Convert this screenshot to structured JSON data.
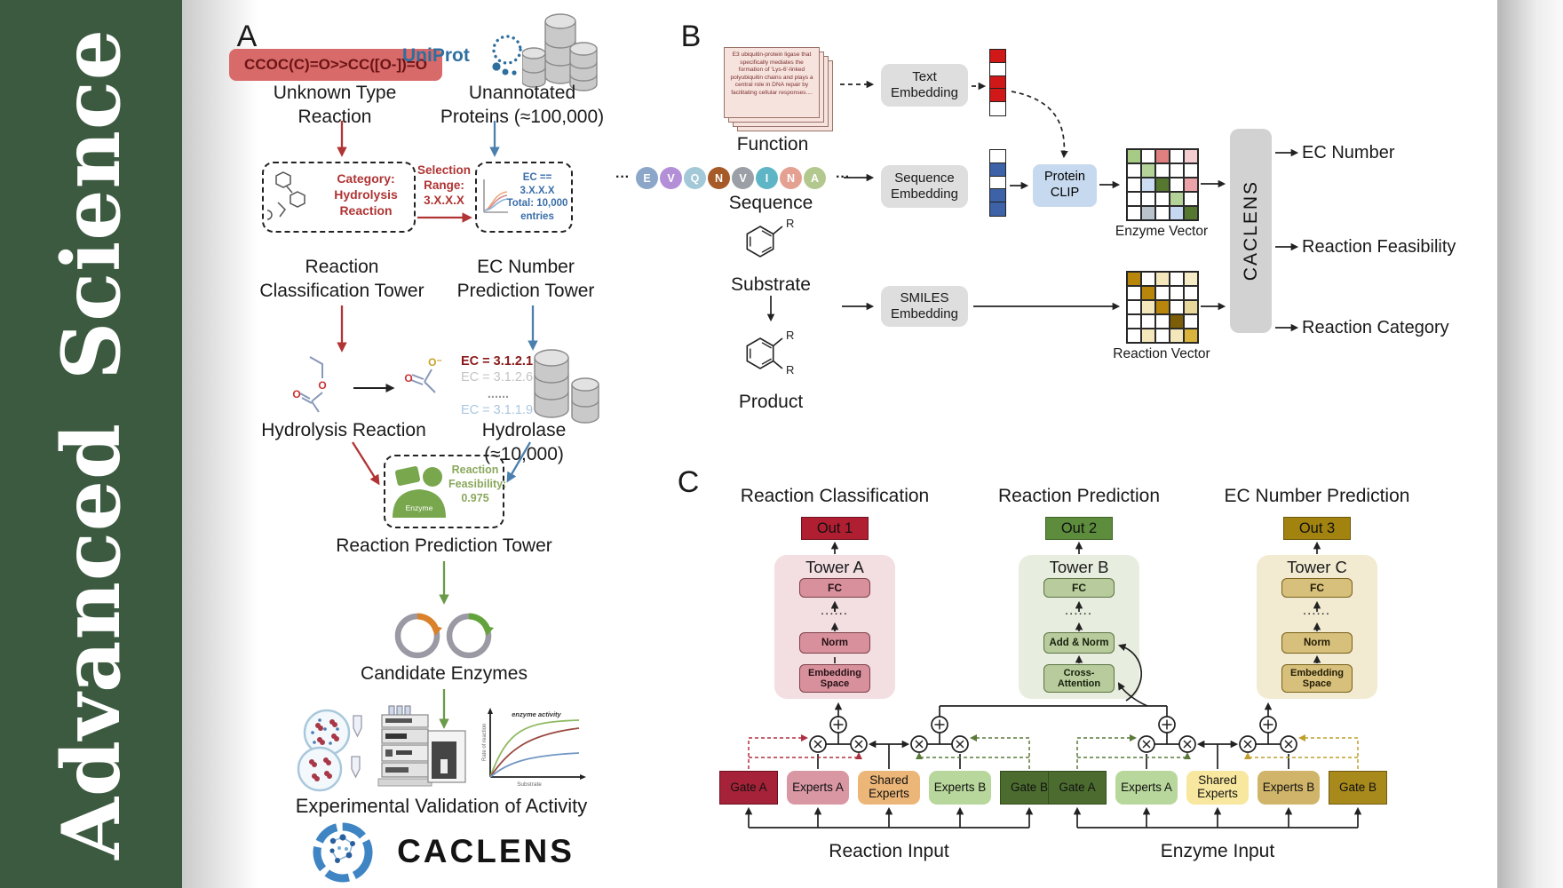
{
  "journal": {
    "title": "Advanced Science"
  },
  "colors": {
    "sidebar_green": "#3c5a40",
    "smiles_red_bg": "#d96a6a",
    "uniprot_blue": "#2e6f9f",
    "arrow_red": "#b03434",
    "arrow_blue": "#4a7fae",
    "arrow_green": "#6a9a4a",
    "out1_red": "#b01e32",
    "out2_green": "#5c8c3c",
    "out3_gold": "#a2830f",
    "tower_a_pink": "#f3dee2",
    "tower_b_green": "#e8eedf",
    "tower_c_tan": "#f2ebd2",
    "gate_a1": "#a52238",
    "experts_a1": "#d897a3",
    "shared1": "#ecb678",
    "experts_b1": "#b8d79c",
    "gate_b1": "#4c6c2f",
    "gate_a2": "#4c6c2f",
    "experts_a2": "#b8d79c",
    "shared2": "#f8e79e",
    "experts_b2": "#cfb469",
    "gate_b2": "#a8891c",
    "protein_clip_blue": "#c7d9ee",
    "embedding_gray": "#dedede",
    "caclens_bar_gray": "#d2d2d2"
  },
  "a": {
    "label": "A",
    "smiles": "CCOC(C)=O>>CC([O-])=O",
    "unknown": "Unknown Type Reaction",
    "uniprot": "UniProt",
    "unannotated": "Unannotated Proteins (≈100,000)",
    "category": [
      "Category:",
      "Hydrolysis",
      "Reaction"
    ],
    "selection": [
      "Selection",
      "Range:",
      "3.X.X.X"
    ],
    "ec_filter": [
      "EC == 3.X.X.X",
      "Total: 10,000",
      "entries"
    ],
    "classification_tower": "Reaction Classification Tower",
    "ec_tower": "EC Number Prediction Tower",
    "hydrolysis": "Hydrolysis Reaction",
    "ec_list": [
      "EC = 3.1.2.1",
      "EC = 3.1.2.6",
      "......",
      "EC = 3.1.1.9"
    ],
    "hydrolase": "Hydrolase (≈10,000)",
    "enzyme": "Enzyme",
    "feasibility": [
      "Reaction",
      "Feasibility:",
      "0.975"
    ],
    "prediction_tower": "Reaction Prediction Tower",
    "candidate": "Candidate Enzymes",
    "validation": "Experimental Validation of Activity",
    "logo_text": "CACLENS",
    "graph": {
      "ylabel": "Rate of reaction",
      "xlabel": "Substrate",
      "annotation": "enzyme activity"
    }
  },
  "b": {
    "label": "B",
    "function_text": "E3 ubiquitin-protein ligase that specifically mediates the formation of 'Lys-6'-linked polyubiquitin chains and plays a central role in DNA repair by facilitating cellular responses....",
    "function_label": "Function",
    "ellipsis": "···",
    "residues": [
      {
        "ch": "E",
        "color": "#8ba6c9"
      },
      {
        "ch": "V",
        "color": "#b28fd6"
      },
      {
        "ch": "Q",
        "color": "#a3c8d8"
      },
      {
        "ch": "N",
        "color": "#a55a28"
      },
      {
        "ch": "V",
        "color": "#9aa0a6"
      },
      {
        "ch": "I",
        "color": "#5eb5c6"
      },
      {
        "ch": "N",
        "color": "#e4a192"
      },
      {
        "ch": "A",
        "color": "#b3c88f"
      }
    ],
    "sequence_label": "Sequence",
    "substrate_label": "Substrate",
    "product_label": "Product",
    "r": "R",
    "text_embedding": "Text Embedding",
    "sequence_embedding": "Sequence Embedding",
    "smiles_embedding": "SMILES Embedding",
    "protein_clip": "Protein CLIP",
    "text_vector": [
      "#d01818",
      "#ffffff",
      "#d01818",
      "#d01818",
      "#ffffff"
    ],
    "seq_vector": [
      "#ffffff",
      "#3d62a8",
      "#ffffff",
      "#3d62a8",
      "#3d62a8"
    ],
    "enzyme_vector_label": "Enzyme Vector",
    "enzyme_vector": [
      [
        "#a6cb85",
        "#ffffff",
        "#e07f7f",
        "#ffffff",
        "#f3cdd0"
      ],
      [
        "#ffffff",
        "#b4d398",
        "#ffffff",
        "#ffffff",
        "#ffffff"
      ],
      [
        "#ffffff",
        "#ccdcf2",
        "#55772f",
        "#ffffff",
        "#eba3a9"
      ],
      [
        "#ffffff",
        "#ffffff",
        "#ffffff",
        "#b4d398",
        "#ffffff"
      ],
      [
        "#ffffff",
        "#b9c3cb",
        "#ffffff",
        "#c5d8ef",
        "#55772f"
      ]
    ],
    "reaction_vector_label": "Reaction Vector",
    "reaction_vector": [
      [
        "#b8860b",
        "#ffffff",
        "#f3e7bb",
        "#ffffff",
        "#f6ecc8"
      ],
      [
        "#ffffff",
        "#b8860b",
        "#ffffff",
        "#ffffff",
        "#ffffff"
      ],
      [
        "#ffffff",
        "#f3e7bb",
        "#b8860b",
        "#ffffff",
        "#e9d79c"
      ],
      [
        "#ffffff",
        "#ffffff",
        "#ffffff",
        "#7c5e08",
        "#ffffff"
      ],
      [
        "#ffffff",
        "#f3e7bb",
        "#ffffff",
        "#f3e7bb",
        "#d9b33c"
      ]
    ],
    "caclens": "CACLENS",
    "outputs": [
      "EC Number",
      "Reaction Feasibility",
      "Reaction Category"
    ]
  },
  "c": {
    "label": "C",
    "columns": [
      {
        "title": "Reaction Classification",
        "out": "Out 1",
        "tower": "Tower A",
        "fc": "FC",
        "dots": "······",
        "mid": "Norm",
        "bottom": "Embedding Space"
      },
      {
        "title": "Reaction Prediction",
        "out": "Out 2",
        "tower": "Tower B",
        "fc": "FC",
        "dots": "······",
        "mid": "Add & Norm",
        "bottom": "Cross-Attention"
      },
      {
        "title": "EC Number Prediction",
        "out": "Out 3",
        "tower": "Tower C",
        "fc": "FC",
        "dots": "······",
        "mid": "Norm",
        "bottom": "Embedding Space"
      }
    ],
    "groups": [
      {
        "label": "Reaction Input",
        "boxes": [
          "Gate A",
          "Experts A",
          "Shared Experts",
          "Experts B",
          "Gate B"
        ]
      },
      {
        "label": "Enzyme Input",
        "boxes": [
          "Gate A",
          "Experts A",
          "Shared Experts",
          "Experts B",
          "Gate B"
        ]
      }
    ]
  }
}
